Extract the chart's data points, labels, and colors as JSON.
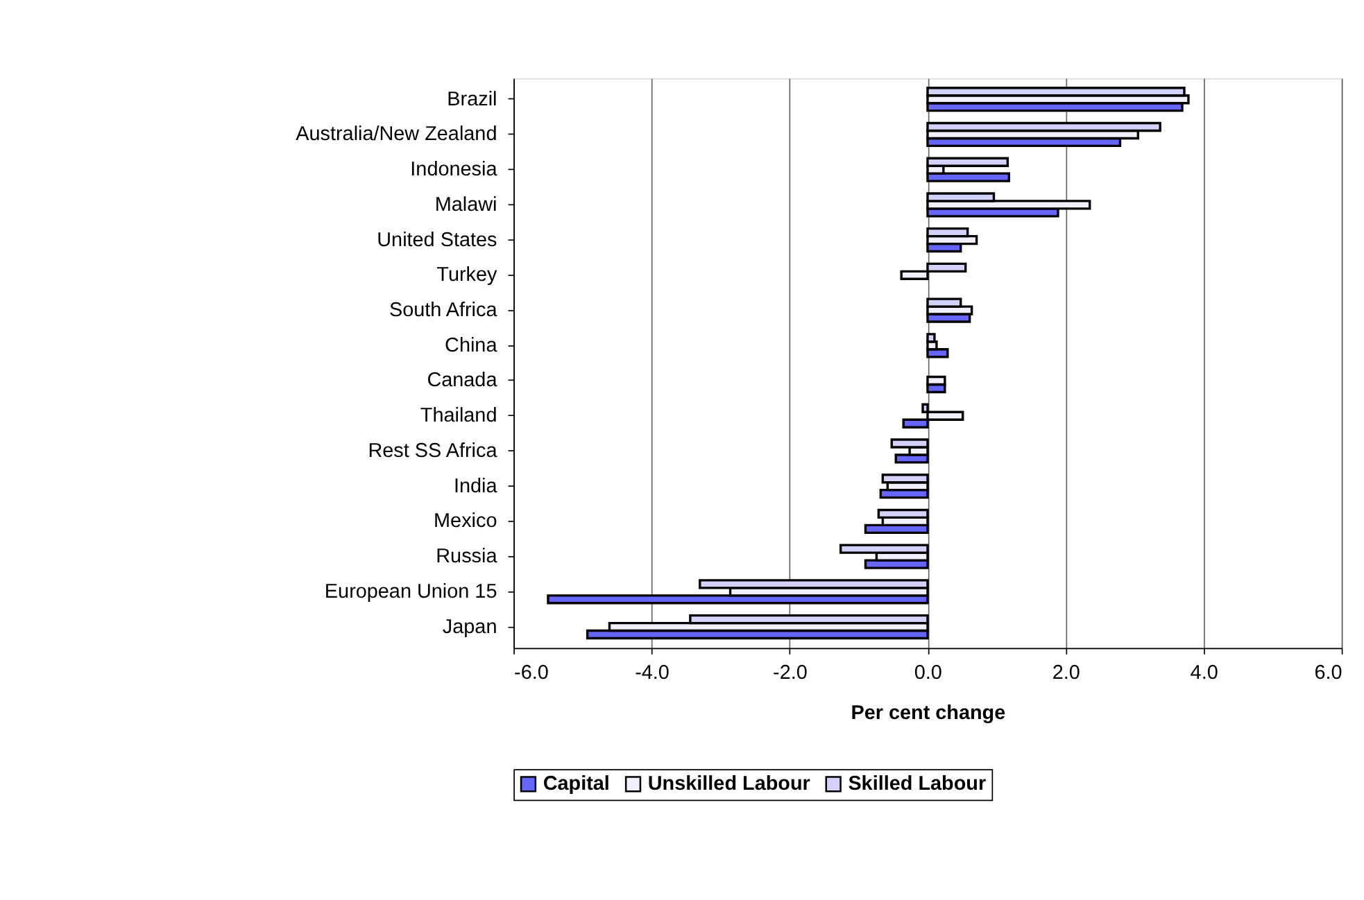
{
  "chart_data": {
    "type": "bar",
    "orientation": "horizontal",
    "xlabel": "Per cent change",
    "categories": [
      "Brazil",
      "Australia/New Zealand",
      "Indonesia",
      "Malawi",
      "United States",
      "Turkey",
      "South Africa",
      "China",
      "Canada",
      "Thailand",
      "Rest SS Africa",
      "India",
      "Mexico",
      "Russia",
      "European Union 15",
      "Japan"
    ],
    "series": [
      {
        "name": "Capital",
        "color": "#6666ff",
        "values": [
          3.69,
          2.79,
          1.18,
          1.89,
          0.48,
          0,
          0.61,
          0.29,
          0.25,
          -0.35,
          -0.46,
          -0.68,
          -0.9,
          -0.9,
          -5.5,
          -4.93
        ]
      },
      {
        "name": "Unskilled Labour",
        "color": "#f0f0ff",
        "values": [
          3.78,
          3.05,
          0.23,
          2.35,
          0.71,
          -0.38,
          0.64,
          0.13,
          0.25,
          0.51,
          -0.26,
          -0.58,
          -0.65,
          -0.74,
          -2.86,
          -4.61
        ]
      },
      {
        "name": "Skilled Labour",
        "color": "#d2d2fa",
        "values": [
          3.72,
          3.37,
          1.16,
          0.96,
          0.58,
          0.55,
          0.48,
          0.1,
          0,
          -0.07,
          -0.52,
          -0.65,
          -0.71,
          -1.26,
          -3.3,
          -3.44
        ]
      }
    ],
    "xlim": [
      -6,
      6
    ],
    "xticks": [
      {
        "value": -6,
        "label": "-6.0"
      },
      {
        "value": -4,
        "label": "-4.0"
      },
      {
        "value": -2,
        "label": "-2.0"
      },
      {
        "value": 0,
        "label": "0.0"
      },
      {
        "value": 2,
        "label": "2.0"
      },
      {
        "value": 4,
        "label": "4.0"
      },
      {
        "value": 6,
        "label": "6.0"
      }
    ],
    "grid": "x",
    "legend": "bottom"
  }
}
